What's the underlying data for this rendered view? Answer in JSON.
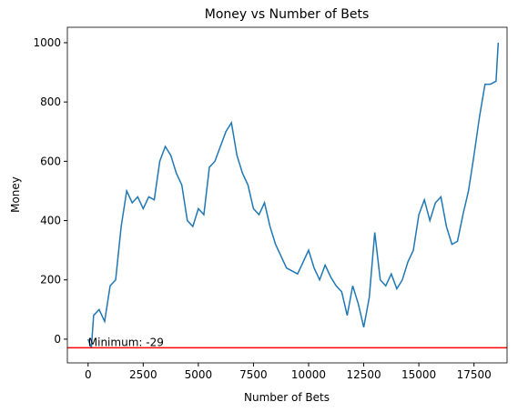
{
  "chart_data": {
    "type": "line",
    "title": "Money vs Number of Bets",
    "x_label": "Number of Bets",
    "y_label": "Money",
    "x": [
      0,
      150,
      250,
      500,
      750,
      1000,
      1250,
      1500,
      1750,
      2000,
      2250,
      2500,
      2750,
      3000,
      3250,
      3500,
      3750,
      4000,
      4250,
      4500,
      4750,
      5000,
      5250,
      5500,
      5750,
      6000,
      6250,
      6500,
      6750,
      7000,
      7250,
      7500,
      7750,
      8000,
      8250,
      8500,
      8750,
      9000,
      9250,
      9500,
      9750,
      10000,
      10250,
      10500,
      10750,
      11000,
      11250,
      11500,
      11750,
      12000,
      12250,
      12500,
      12750,
      13000,
      13250,
      13500,
      13750,
      14000,
      14250,
      14500,
      14750,
      15000,
      15250,
      15500,
      15750,
      16000,
      16250,
      16500,
      16750,
      17000,
      17250,
      17500,
      17750,
      18000,
      18250,
      18500,
      18600
    ],
    "series": [
      {
        "name": "Money",
        "color": "#1f77b4",
        "values": [
          0,
          -29,
          80,
          100,
          60,
          180,
          200,
          380,
          500,
          460,
          480,
          440,
          480,
          470,
          600,
          650,
          620,
          560,
          520,
          400,
          380,
          440,
          420,
          580,
          600,
          650,
          700,
          730,
          620,
          560,
          520,
          440,
          420,
          460,
          380,
          320,
          280,
          240,
          230,
          220,
          260,
          300,
          240,
          200,
          250,
          210,
          180,
          160,
          80,
          180,
          120,
          40,
          140,
          360,
          200,
          180,
          220,
          170,
          200,
          260,
          300,
          420,
          470,
          400,
          460,
          480,
          380,
          320,
          330,
          420,
          500,
          620,
          750,
          860,
          860,
          870,
          1000
        ]
      }
    ],
    "hline": {
      "value": -29,
      "color": "#ff0000"
    },
    "annotation": "Minimum: -29",
    "xlim": [
      -940,
      19000
    ],
    "ylim": [
      -80,
      1052
    ],
    "xticks": [
      0,
      2500,
      5000,
      7500,
      10000,
      12500,
      15000,
      17500
    ],
    "yticks": [
      0,
      200,
      400,
      600,
      800,
      1000
    ]
  }
}
